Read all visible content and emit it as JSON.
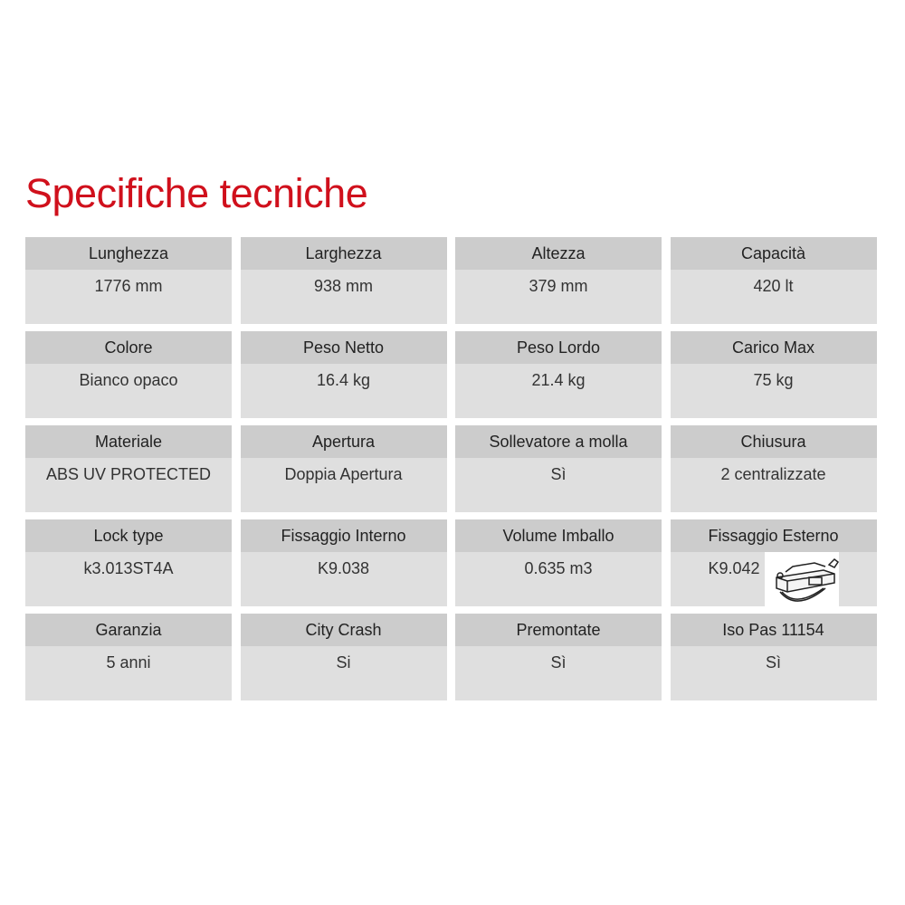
{
  "title": "Specifiche tecniche",
  "colors": {
    "title": "#d0101c",
    "label_bg": "#cccccc",
    "value_bg": "#dfdfdf"
  },
  "specs": [
    {
      "label": "Lunghezza",
      "value": "1776 mm"
    },
    {
      "label": "Larghezza",
      "value": "938 mm"
    },
    {
      "label": "Altezza",
      "value": "379 mm"
    },
    {
      "label": "Capacità",
      "value": "420 lt"
    },
    {
      "label": "Colore",
      "value": "Bianco opaco"
    },
    {
      "label": "Peso Netto",
      "value": "16.4 kg"
    },
    {
      "label": "Peso Lordo",
      "value": "21.4 kg"
    },
    {
      "label": "Carico Max",
      "value": "75 kg"
    },
    {
      "label": "Materiale",
      "value": "ABS UV PROTECTED"
    },
    {
      "label": "Apertura",
      "value": "Doppia Apertura"
    },
    {
      "label": "Sollevatore a molla",
      "value": "Sì"
    },
    {
      "label": "Chiusura",
      "value": "2 centralizzate"
    },
    {
      "label": "Lock type",
      "value": "k3.013ST4A"
    },
    {
      "label": "Fissaggio Interno",
      "value": "K9.038"
    },
    {
      "label": "Volume Imballo",
      "value": "0.635 m3"
    },
    {
      "label": "Fissaggio Esterno",
      "value": "K9.042",
      "image": "mounting-clamp-drawing"
    },
    {
      "label": "Garanzia",
      "value": "5 anni"
    },
    {
      "label": "City Crash",
      "value": "Si"
    },
    {
      "label": "Premontate",
      "value": "Sì"
    },
    {
      "label": "Iso Pas 11154",
      "value": "Sì"
    }
  ]
}
